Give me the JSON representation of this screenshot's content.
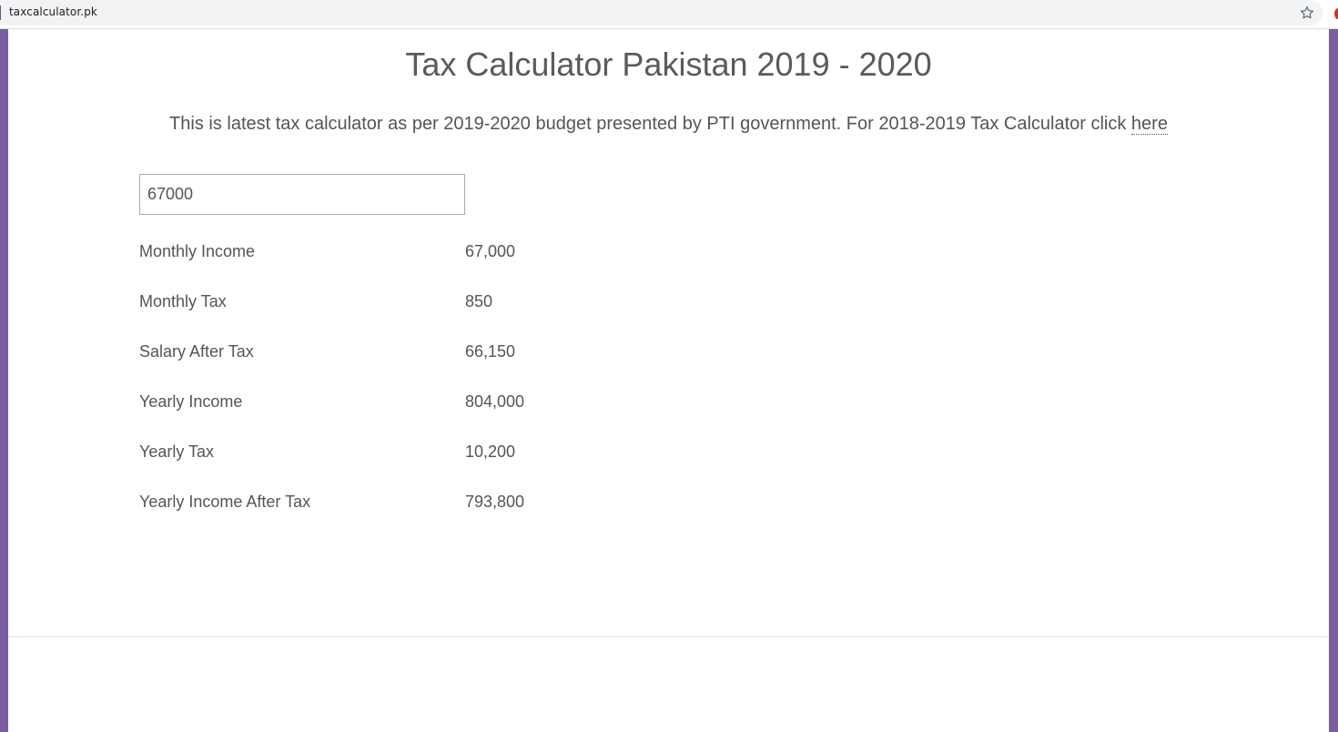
{
  "browser": {
    "url": "taxcalculator.pk"
  },
  "page": {
    "title": "Tax Calculator Pakistan 2019 - 2020",
    "intro_text": "This is latest tax calculator as per 2019-2020 budget presented by PTI government. For 2018-2019 Tax Calculator click ",
    "intro_link": "here"
  },
  "form": {
    "income_value": "67000"
  },
  "results": [
    {
      "label": "Monthly Income",
      "value": "67,000"
    },
    {
      "label": "Monthly Tax",
      "value": "850"
    },
    {
      "label": "Salary After Tax",
      "value": "66,150"
    },
    {
      "label": "Yearly Income",
      "value": "804,000"
    },
    {
      "label": "Yearly Tax",
      "value": "10,200"
    },
    {
      "label": "Yearly Income After Tax",
      "value": "793,800"
    }
  ],
  "colors": {
    "side_border": "#7b5ea0",
    "text": "#555555"
  }
}
